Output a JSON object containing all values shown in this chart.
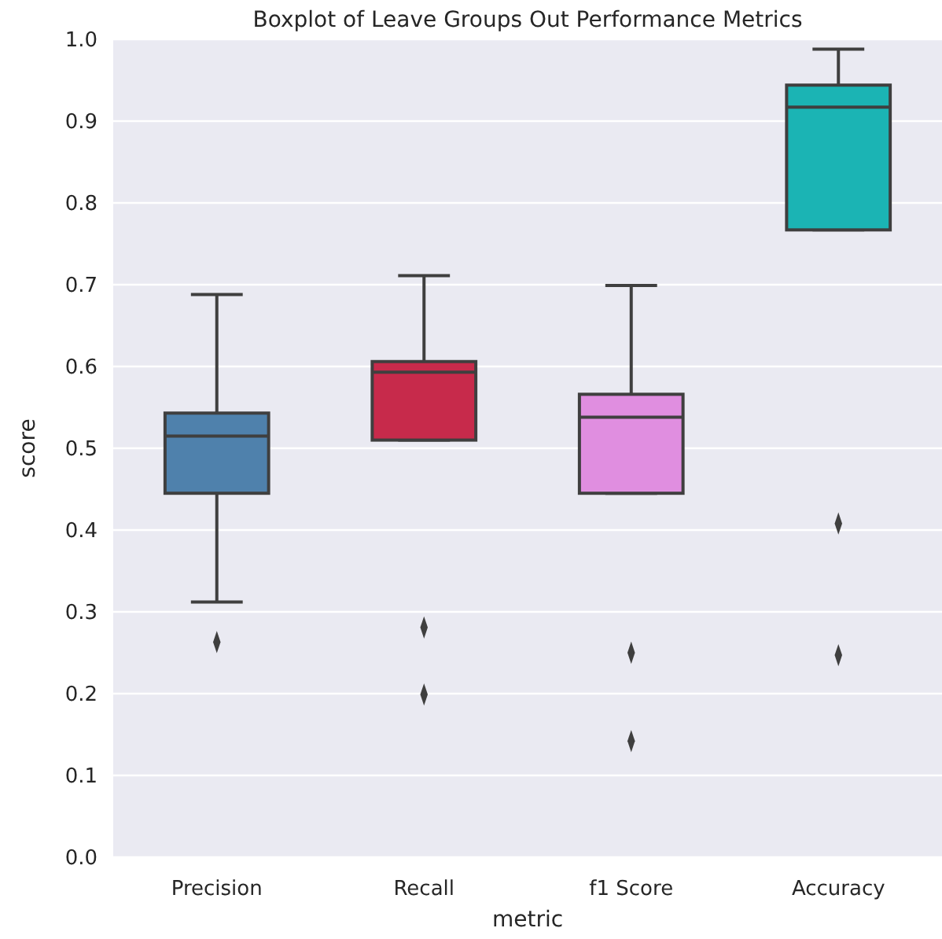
{
  "chart_data": {
    "type": "box",
    "title": "Boxplot of Leave Groups Out Performance Metrics",
    "xlabel": "metric",
    "ylabel": "score",
    "categories": [
      "Precision",
      "Recall",
      "f1 Score",
      "Accuracy"
    ],
    "colors": [
      "#4f81ac",
      "#c72a4b",
      "#e08ee0",
      "#1bb4b4"
    ],
    "boxes": [
      {
        "low": 0.312,
        "q1": 0.445,
        "median": 0.515,
        "q3": 0.543,
        "high": 0.688,
        "outliers": [
          0.263
        ]
      },
      {
        "low": 0.51,
        "q1": 0.51,
        "median": 0.593,
        "q3": 0.606,
        "high": 0.711,
        "outliers": [
          0.281,
          0.199
        ]
      },
      {
        "low": 0.445,
        "q1": 0.445,
        "median": 0.538,
        "q3": 0.566,
        "high": 0.699,
        "outliers": [
          0.25,
          0.142
        ]
      },
      {
        "low": 0.767,
        "q1": 0.767,
        "median": 0.917,
        "q3": 0.944,
        "high": 0.988,
        "outliers": [
          0.408,
          0.247
        ]
      }
    ],
    "ylim": [
      0,
      1
    ],
    "yticks": [
      {
        "value": 0,
        "label": "0.0"
      },
      0.1,
      0.2,
      0.3,
      0.4,
      0.5,
      0.6,
      0.7,
      0.8,
      0.9,
      {
        "value": 1,
        "label": "1.0"
      }
    ],
    "grid": "y",
    "marker": "diamond"
  }
}
